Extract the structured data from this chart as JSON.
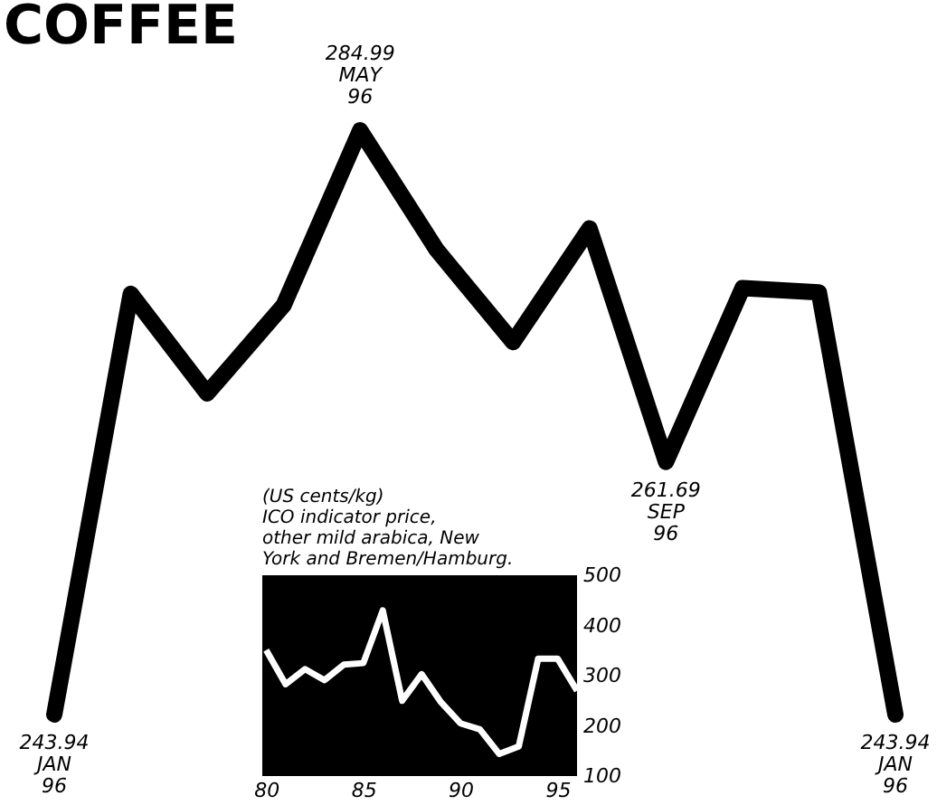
{
  "chart_data": [
    {
      "type": "line",
      "title": "COFFEE",
      "categories": [
        null,
        null,
        null,
        null,
        null,
        null,
        null,
        null,
        null,
        null,
        null,
        null
      ],
      "series": [
        {
          "color": "#000000",
          "values": [
            243.94,
            273.5,
            266.5,
            272.7,
            284.99,
            276.6,
            270.1,
            278.1,
            261.69,
            273.9,
            273.6,
            243.94
          ],
          "value_labels": [
            "243.94\nJAN\n96",
            null,
            null,
            null,
            "284.99\nMAY\n96",
            null,
            null,
            null,
            "261.69\nSEP\n96",
            null,
            null,
            "243.94\nJAN\n96"
          ]
        }
      ],
      "tick_labels": false
    },
    {
      "type": "line",
      "title": "(US cents/kg)",
      "subtitle": "ICO indicator price, other mild arabica, New York and Bremen/Hamburg.",
      "x": [
        80,
        81,
        82,
        83,
        84,
        85,
        86,
        87,
        88,
        89,
        90,
        91,
        92,
        93,
        94,
        95,
        96
      ],
      "series": [
        {
          "color": "#ffffff",
          "values": [
            351,
            283,
            313,
            291,
            322,
            325,
            430,
            250,
            303,
            247,
            205,
            193,
            144,
            159,
            334,
            334,
            270
          ]
        }
      ],
      "xlim": [
        79.8,
        96
      ],
      "ylim": [
        100,
        500
      ],
      "xticks": [
        80,
        85,
        90,
        95
      ],
      "yticks": [
        100,
        200,
        300,
        400,
        500
      ]
    }
  ]
}
